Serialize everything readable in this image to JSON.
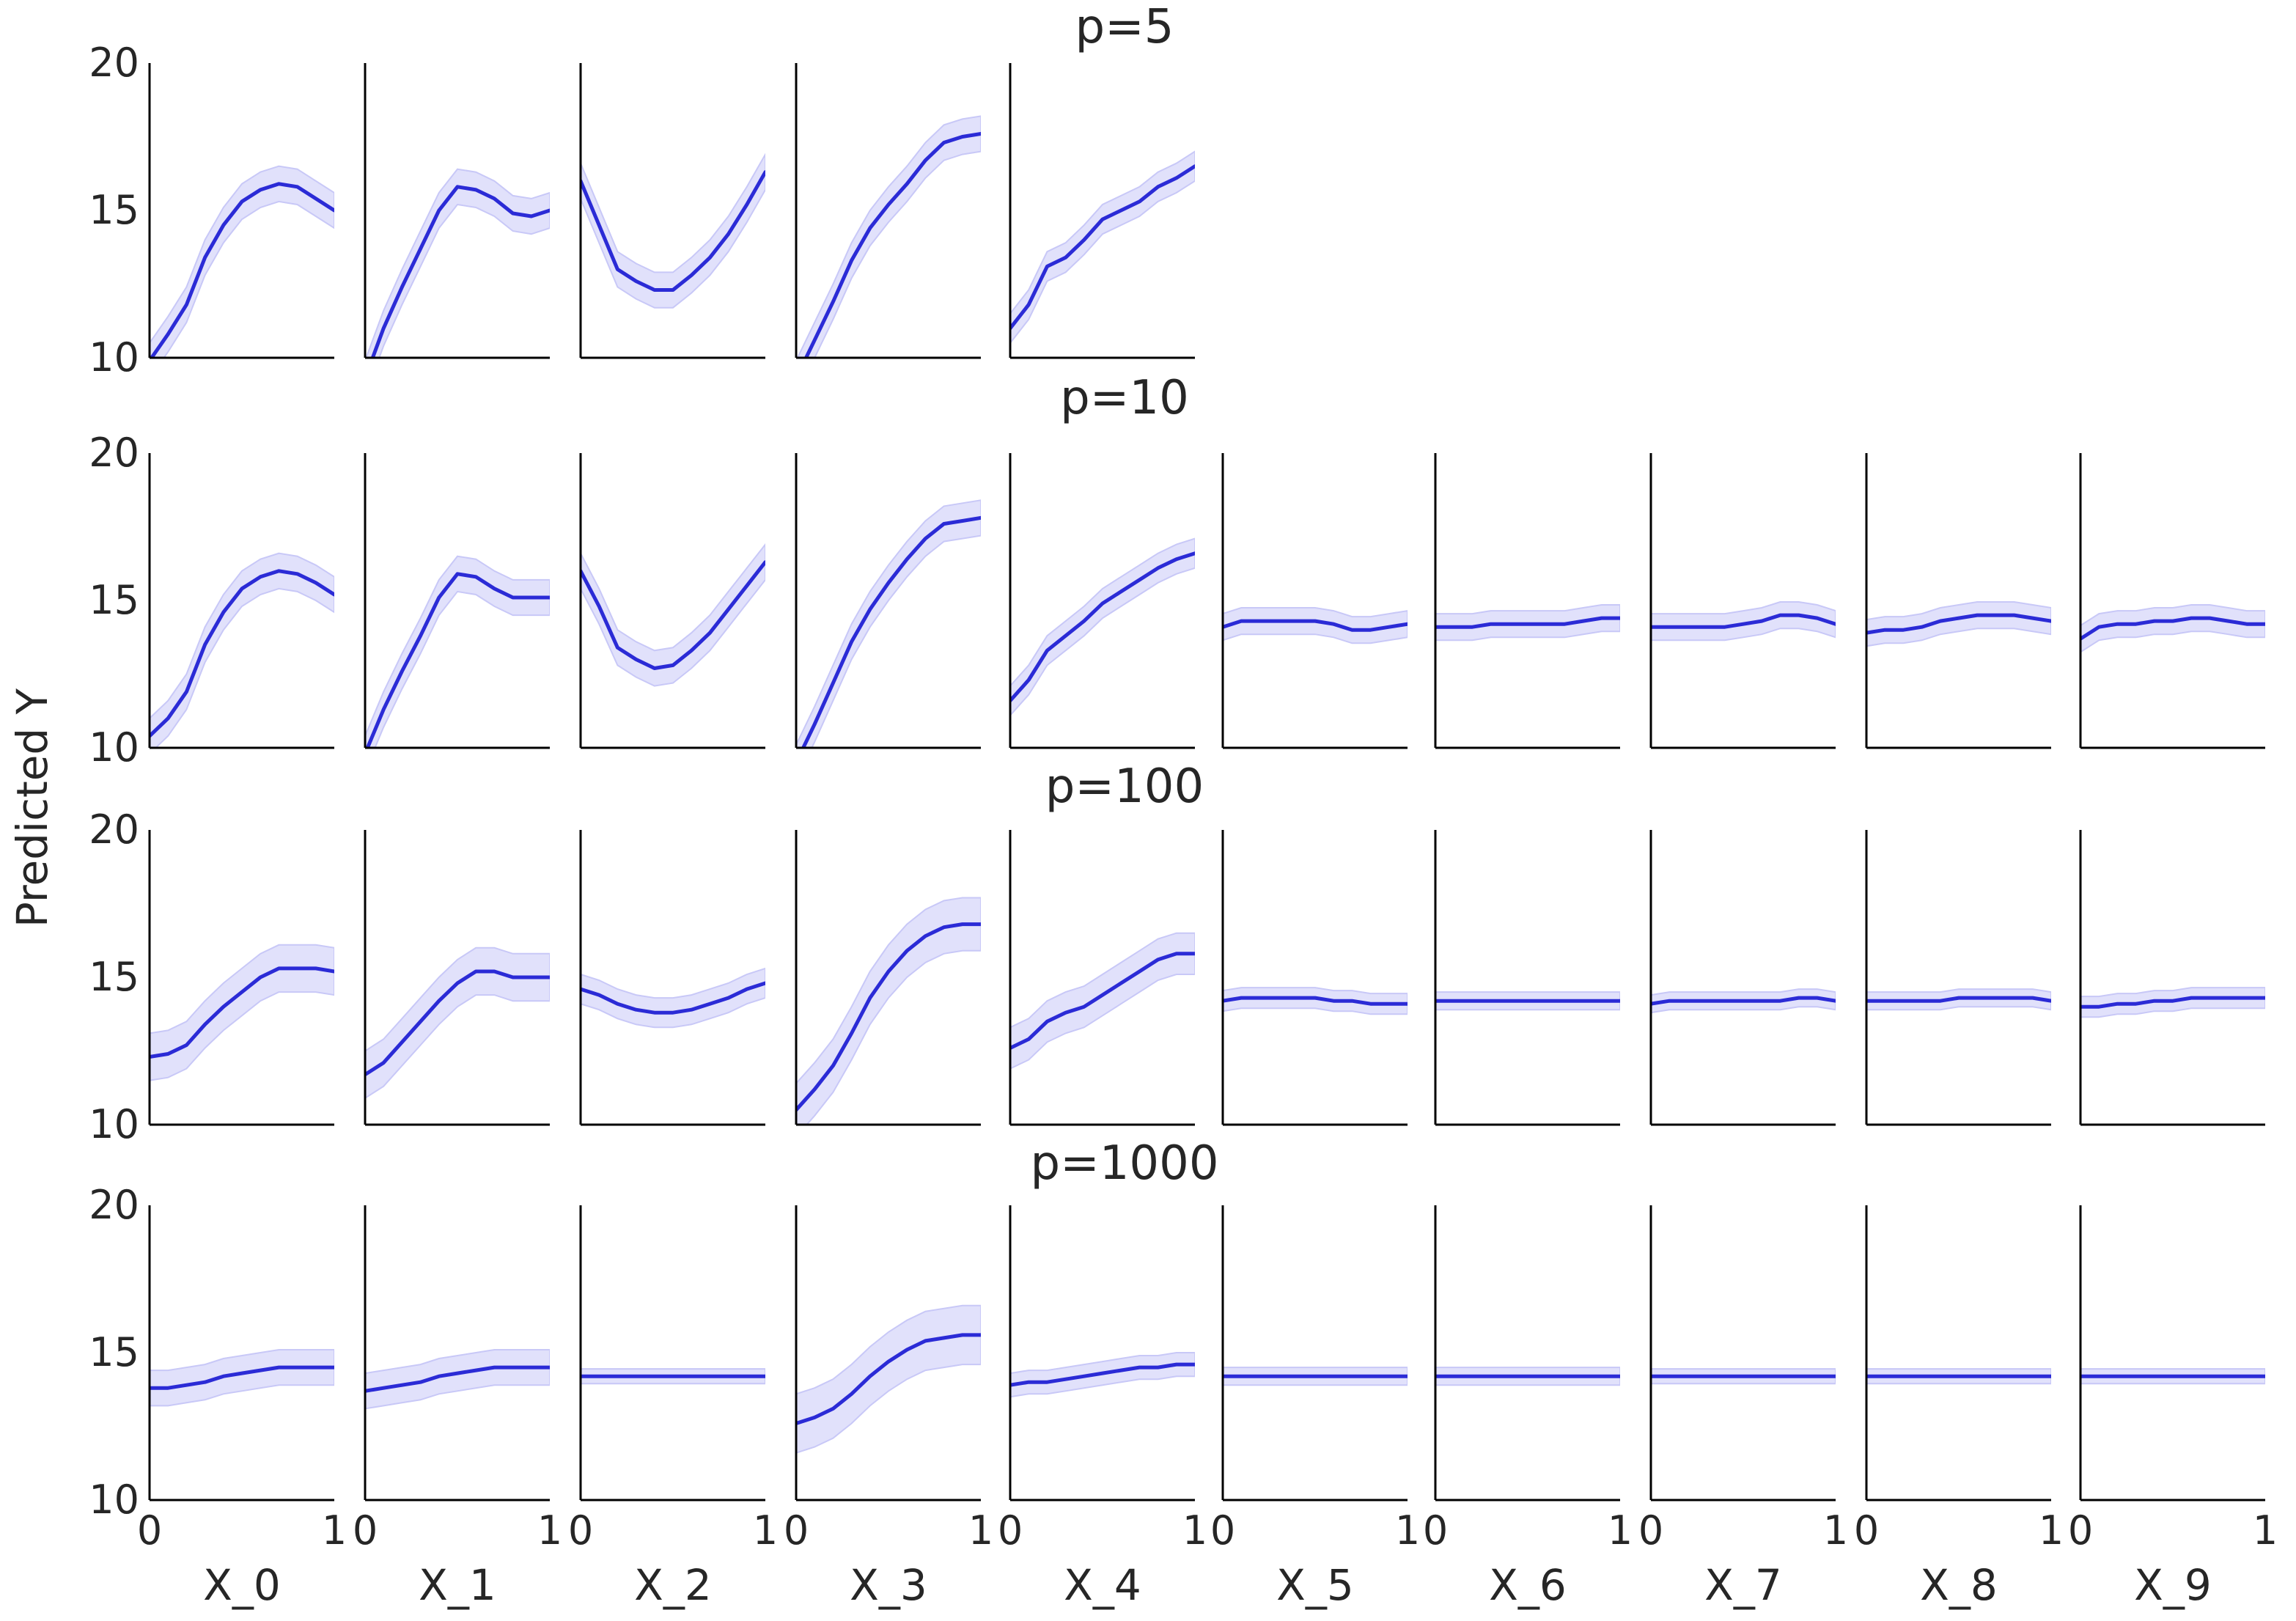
{
  "figure": {
    "ylabel": "Predicted Y",
    "line_color": "#2b2bd6",
    "band_color": "#c8c8f7",
    "axis_color": "#000000"
  },
  "chart_data": {
    "type": "line",
    "x_range": [
      0,
      1
    ],
    "ylim": [
      10,
      20
    ],
    "y_ticks": [
      10,
      15,
      20
    ],
    "x_ticks": [
      0,
      1
    ],
    "grid": false,
    "legend": "none",
    "x_labels": [
      "X_0",
      "X_1",
      "X_2",
      "X_3",
      "X_4",
      "X_5",
      "X_6",
      "X_7",
      "X_8",
      "X_9"
    ],
    "x": [
      0,
      0.1,
      0.2,
      0.3,
      0.4,
      0.5,
      0.6,
      0.7,
      0.8,
      0.9,
      1.0
    ],
    "rows": [
      {
        "title": "p=5",
        "panels": [
          {
            "variable": "X_0",
            "y": [
              9.9,
              10.8,
              11.8,
              13.4,
              14.5,
              15.3,
              15.7,
              15.9,
              15.8,
              15.4,
              15.0
            ],
            "band": 0.6
          },
          {
            "variable": "X_1",
            "y": [
              9.3,
              11.0,
              12.4,
              13.7,
              15.0,
              15.8,
              15.7,
              15.4,
              14.9,
              14.8,
              15.0
            ],
            "band": 0.6
          },
          {
            "variable": "X_2",
            "y": [
              16.0,
              14.5,
              13.0,
              12.6,
              12.3,
              12.3,
              12.8,
              13.4,
              14.2,
              15.2,
              16.3
            ],
            "band": 0.6
          },
          {
            "variable": "X_3",
            "y": [
              9.3,
              10.6,
              11.9,
              13.3,
              14.4,
              15.2,
              15.9,
              16.7,
              17.3,
              17.5,
              17.6
            ],
            "band": 0.6
          },
          {
            "variable": "X_4",
            "y": [
              11.0,
              11.8,
              13.1,
              13.4,
              14.0,
              14.7,
              15.0,
              15.3,
              15.8,
              16.1,
              16.5
            ],
            "band": 0.5
          }
        ]
      },
      {
        "title": "p=10",
        "panels": [
          {
            "variable": "X_0",
            "y": [
              10.4,
              11.0,
              11.9,
              13.5,
              14.6,
              15.4,
              15.8,
              16.0,
              15.9,
              15.6,
              15.2
            ],
            "band": 0.6
          },
          {
            "variable": "X_1",
            "y": [
              9.8,
              11.3,
              12.6,
              13.8,
              15.1,
              15.9,
              15.8,
              15.4,
              15.1,
              15.1,
              15.1
            ],
            "band": 0.6
          },
          {
            "variable": "X_2",
            "y": [
              16.0,
              14.8,
              13.4,
              13.0,
              12.7,
              12.8,
              13.3,
              13.9,
              14.7,
              15.5,
              16.3
            ],
            "band": 0.6
          },
          {
            "variable": "X_3",
            "y": [
              9.5,
              10.8,
              12.2,
              13.6,
              14.7,
              15.6,
              16.4,
              17.1,
              17.6,
              17.7,
              17.8
            ],
            "band": 0.6
          },
          {
            "variable": "X_4",
            "y": [
              11.6,
              12.3,
              13.3,
              13.8,
              14.3,
              14.9,
              15.3,
              15.7,
              16.1,
              16.4,
              16.6
            ],
            "band": 0.5
          },
          {
            "variable": "X_5",
            "y": [
              14.1,
              14.3,
              14.3,
              14.3,
              14.3,
              14.3,
              14.2,
              14.0,
              14.0,
              14.1,
              14.2
            ],
            "band": 0.45
          },
          {
            "variable": "X_6",
            "y": [
              14.1,
              14.1,
              14.1,
              14.2,
              14.2,
              14.2,
              14.2,
              14.2,
              14.3,
              14.4,
              14.4
            ],
            "band": 0.45
          },
          {
            "variable": "X_7",
            "y": [
              14.1,
              14.1,
              14.1,
              14.1,
              14.1,
              14.2,
              14.3,
              14.5,
              14.5,
              14.4,
              14.2
            ],
            "band": 0.45
          },
          {
            "variable": "X_8",
            "y": [
              13.9,
              14.0,
              14.0,
              14.1,
              14.3,
              14.4,
              14.5,
              14.5,
              14.5,
              14.4,
              14.3
            ],
            "band": 0.45
          },
          {
            "variable": "X_9",
            "y": [
              13.7,
              14.1,
              14.2,
              14.2,
              14.3,
              14.3,
              14.4,
              14.4,
              14.3,
              14.2,
              14.2
            ],
            "band": 0.45
          }
        ]
      },
      {
        "title": "p=100",
        "panels": [
          {
            "variable": "X_0",
            "y": [
              12.3,
              12.4,
              12.7,
              13.4,
              14.0,
              14.5,
              15.0,
              15.3,
              15.3,
              15.3,
              15.2
            ],
            "band": 0.8
          },
          {
            "variable": "X_1",
            "y": [
              11.7,
              12.1,
              12.8,
              13.5,
              14.2,
              14.8,
              15.2,
              15.2,
              15.0,
              15.0,
              15.0
            ],
            "band": 0.8
          },
          {
            "variable": "X_2",
            "y": [
              14.6,
              14.4,
              14.1,
              13.9,
              13.8,
              13.8,
              13.9,
              14.1,
              14.3,
              14.6,
              14.8
            ],
            "band": 0.5
          },
          {
            "variable": "X_3",
            "y": [
              10.5,
              11.2,
              12.0,
              13.1,
              14.3,
              15.2,
              15.9,
              16.4,
              16.7,
              16.8,
              16.8
            ],
            "band": 0.9
          },
          {
            "variable": "X_4",
            "y": [
              12.6,
              12.9,
              13.5,
              13.8,
              14.0,
              14.4,
              14.8,
              15.2,
              15.6,
              15.8,
              15.8
            ],
            "band": 0.7
          },
          {
            "variable": "X_5",
            "y": [
              14.2,
              14.3,
              14.3,
              14.3,
              14.3,
              14.3,
              14.2,
              14.2,
              14.1,
              14.1,
              14.1
            ],
            "band": 0.35
          },
          {
            "variable": "X_6",
            "y": [
              14.2,
              14.2,
              14.2,
              14.2,
              14.2,
              14.2,
              14.2,
              14.2,
              14.2,
              14.2,
              14.2
            ],
            "band": 0.3
          },
          {
            "variable": "X_7",
            "y": [
              14.1,
              14.2,
              14.2,
              14.2,
              14.2,
              14.2,
              14.2,
              14.2,
              14.3,
              14.3,
              14.2
            ],
            "band": 0.3
          },
          {
            "variable": "X_8",
            "y": [
              14.2,
              14.2,
              14.2,
              14.2,
              14.2,
              14.3,
              14.3,
              14.3,
              14.3,
              14.3,
              14.2
            ],
            "band": 0.3
          },
          {
            "variable": "X_9",
            "y": [
              14.0,
              14.0,
              14.1,
              14.1,
              14.2,
              14.2,
              14.3,
              14.3,
              14.3,
              14.3,
              14.3
            ],
            "band": 0.35
          }
        ]
      },
      {
        "title": "p=1000",
        "panels": [
          {
            "variable": "X_0",
            "y": [
              13.8,
              13.8,
              13.9,
              14.0,
              14.2,
              14.3,
              14.4,
              14.5,
              14.5,
              14.5,
              14.5
            ],
            "band": 0.6
          },
          {
            "variable": "X_1",
            "y": [
              13.7,
              13.8,
              13.9,
              14.0,
              14.2,
              14.3,
              14.4,
              14.5,
              14.5,
              14.5,
              14.5
            ],
            "band": 0.6
          },
          {
            "variable": "X_2",
            "y": [
              14.2,
              14.2,
              14.2,
              14.2,
              14.2,
              14.2,
              14.2,
              14.2,
              14.2,
              14.2,
              14.2
            ],
            "band": 0.25
          },
          {
            "variable": "X_3",
            "y": [
              12.6,
              12.8,
              13.1,
              13.6,
              14.2,
              14.7,
              15.1,
              15.4,
              15.5,
              15.6,
              15.6
            ],
            "band": 1.0
          },
          {
            "variable": "X_4",
            "y": [
              13.9,
              14.0,
              14.0,
              14.1,
              14.2,
              14.3,
              14.4,
              14.5,
              14.5,
              14.6,
              14.6
            ],
            "band": 0.4
          },
          {
            "variable": "X_5",
            "y": [
              14.2,
              14.2,
              14.2,
              14.2,
              14.2,
              14.2,
              14.2,
              14.2,
              14.2,
              14.2,
              14.2
            ],
            "band": 0.3
          },
          {
            "variable": "X_6",
            "y": [
              14.2,
              14.2,
              14.2,
              14.2,
              14.2,
              14.2,
              14.2,
              14.2,
              14.2,
              14.2,
              14.2
            ],
            "band": 0.3
          },
          {
            "variable": "X_7",
            "y": [
              14.2,
              14.2,
              14.2,
              14.2,
              14.2,
              14.2,
              14.2,
              14.2,
              14.2,
              14.2,
              14.2
            ],
            "band": 0.25
          },
          {
            "variable": "X_8",
            "y": [
              14.2,
              14.2,
              14.2,
              14.2,
              14.2,
              14.2,
              14.2,
              14.2,
              14.2,
              14.2,
              14.2
            ],
            "band": 0.25
          },
          {
            "variable": "X_9",
            "y": [
              14.2,
              14.2,
              14.2,
              14.2,
              14.2,
              14.2,
              14.2,
              14.2,
              14.2,
              14.2,
              14.2
            ],
            "band": 0.25
          }
        ]
      }
    ]
  }
}
